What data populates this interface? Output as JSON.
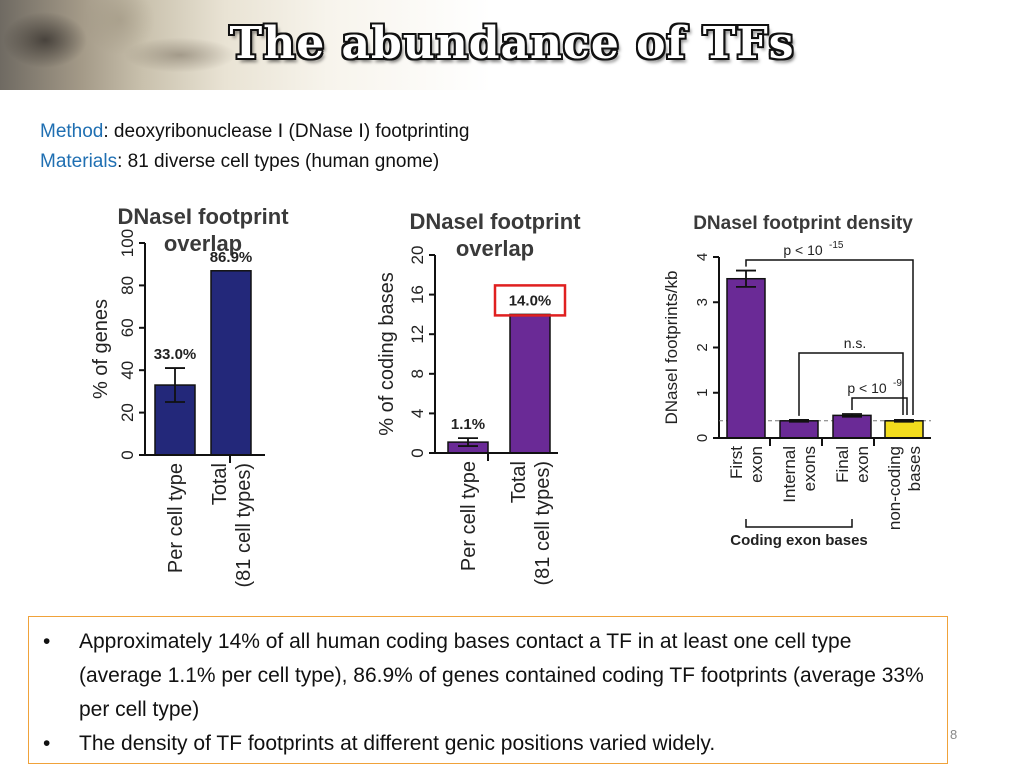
{
  "slide": {
    "title": "The abundance of TFs",
    "method_key": "Method",
    "method_text": ": deoxyribonuclease Ⅰ (DNase Ⅰ) footprinting",
    "materials_key": "Materials",
    "materials_text": ": 81 diverse cell types (human gnome)",
    "bullets": [
      "Approximately 14% of all human coding bases contact a TF in at least one cell type (average 1.1% per cell type), 86.9% of genes contained coding TF footprints (average 33% per cell type)",
      "The density of TF footprints at different genic positions varied widely."
    ],
    "page_number": "8"
  },
  "chart_data": [
    {
      "type": "bar",
      "title_lines": [
        "DNaseI footprint",
        "overlap"
      ],
      "ylabel": "% of genes",
      "ylim": [
        0,
        100
      ],
      "yticks": [
        0,
        20,
        40,
        60,
        80,
        100
      ],
      "categories": [
        "Per cell type",
        "Total\n(81 cell types)"
      ],
      "values": [
        33.0,
        86.9
      ],
      "error": [
        8,
        0
      ],
      "value_labels": [
        "33.0%",
        "86.9%"
      ],
      "colors": [
        "#23287a",
        "#23287a"
      ]
    },
    {
      "type": "bar",
      "title_lines": [
        "DNaseI footprint",
        "overlap"
      ],
      "ylabel": "% of coding bases",
      "ylim": [
        0,
        20
      ],
      "yticks": [
        0,
        4,
        8,
        12,
        16,
        20
      ],
      "categories": [
        "Per cell type",
        "Total\n(81 cell types)"
      ],
      "values": [
        1.1,
        14.0
      ],
      "error": [
        0.4,
        0
      ],
      "value_labels": [
        "1.1%",
        "14.0%"
      ],
      "highlight_index": 1,
      "highlight_color": "#e02020",
      "colors": [
        "#6a2a96",
        "#6a2a96"
      ]
    },
    {
      "type": "bar",
      "title": "DNaseI footprint density",
      "ylabel": "DNaseI footprints/kb",
      "ylim": [
        0,
        4
      ],
      "yticks": [
        0,
        1,
        2,
        3,
        4
      ],
      "categories": [
        "First\nexon",
        "Internal\nexons",
        "Final\nexon",
        "non-coding\nbases"
      ],
      "values": [
        3.52,
        0.38,
        0.5,
        0.38
      ],
      "error": [
        0.18,
        0.02,
        0.03,
        0.02
      ],
      "colors": [
        "#6a2a96",
        "#6a2a96",
        "#6a2a96",
        "#f2dc1d"
      ],
      "reference_line": 0.38,
      "group_label": "Coding exon bases",
      "annotations": [
        {
          "label": "p < 10",
          "sup": "-15",
          "from": 0,
          "to": 3
        },
        {
          "label": "n.s.",
          "sup": "",
          "from": 1,
          "to": 3
        },
        {
          "label": "p < 10",
          "sup": "-9",
          "from": 2,
          "to": 3
        }
      ]
    }
  ]
}
